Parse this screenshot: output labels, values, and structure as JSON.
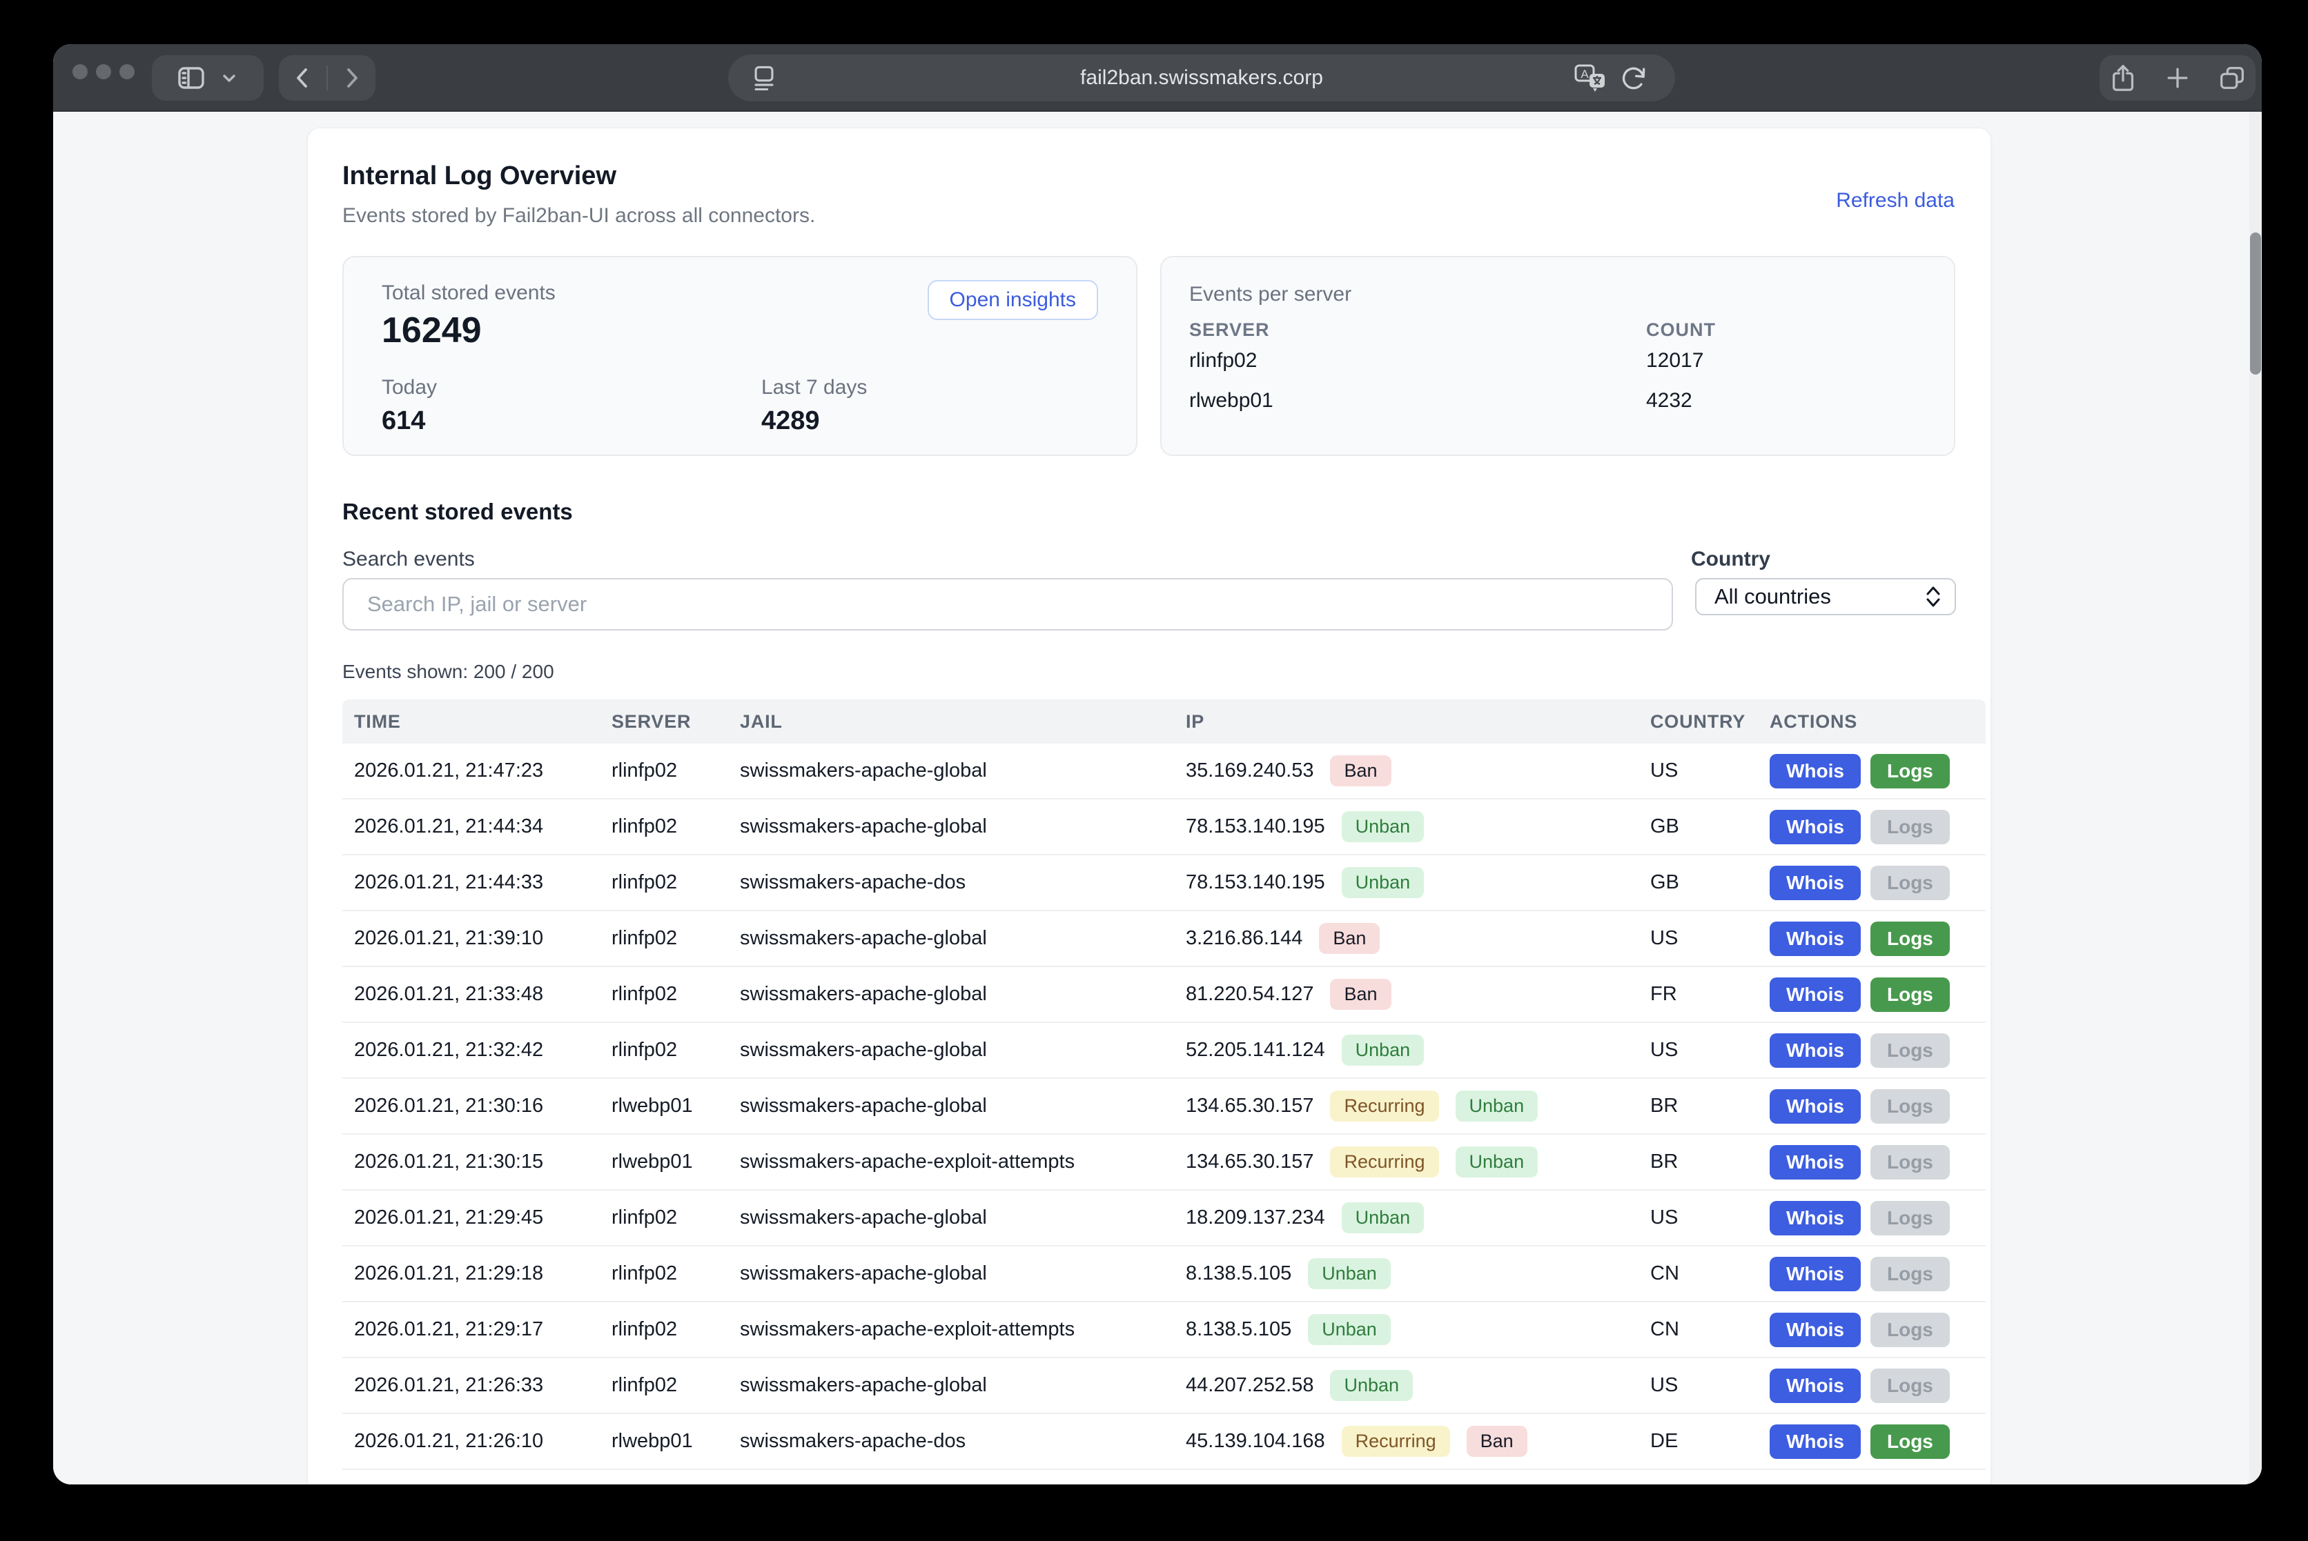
{
  "browser": {
    "url": "fail2ban.swissmakers.corp",
    "icons": {
      "reload": "↻",
      "new_tab": "+"
    }
  },
  "page": {
    "title": "Internal Log Overview",
    "subtitle": "Events stored by Fail2ban-UI across all connectors.",
    "refresh_label": "Refresh data"
  },
  "stats": {
    "total_label": "Total stored events",
    "total_value": "16249",
    "insights_label": "Open insights",
    "today_label": "Today",
    "today_value": "614",
    "last7_label": "Last 7 days",
    "last7_value": "4289"
  },
  "per_server": {
    "title": "Events per server",
    "columns": [
      "SERVER",
      "COUNT"
    ],
    "rows": [
      {
        "server": "rlinfp02",
        "count": "12017"
      },
      {
        "server": "rlwebp01",
        "count": "4232"
      }
    ]
  },
  "events": {
    "heading": "Recent stored events",
    "search_label": "Search events",
    "search_placeholder": "Search IP, jail or server",
    "country_label": "Country",
    "country_value": "All countries",
    "shown_label": "Events shown: 200 / 200",
    "columns": [
      "TIME",
      "SERVER",
      "JAIL",
      "IP",
      "COUNTRY",
      "ACTIONS"
    ],
    "actions": {
      "whois": "Whois",
      "logs": "Logs"
    },
    "rows": [
      {
        "time": "2026.01.21, 21:47:23",
        "server": "rlinfp02",
        "jail": "swissmakers-apache-global",
        "ip": "35.169.240.53",
        "badges": [
          {
            "type": "ban",
            "label": "Ban"
          }
        ],
        "country": "US",
        "logs_active": true
      },
      {
        "time": "2026.01.21, 21:44:34",
        "server": "rlinfp02",
        "jail": "swissmakers-apache-global",
        "ip": "78.153.140.195",
        "badges": [
          {
            "type": "unban",
            "label": "Unban"
          }
        ],
        "country": "GB",
        "logs_active": false
      },
      {
        "time": "2026.01.21, 21:44:33",
        "server": "rlinfp02",
        "jail": "swissmakers-apache-dos",
        "ip": "78.153.140.195",
        "badges": [
          {
            "type": "unban",
            "label": "Unban"
          }
        ],
        "country": "GB",
        "logs_active": false
      },
      {
        "time": "2026.01.21, 21:39:10",
        "server": "rlinfp02",
        "jail": "swissmakers-apache-global",
        "ip": "3.216.86.144",
        "badges": [
          {
            "type": "ban",
            "label": "Ban"
          }
        ],
        "country": "US",
        "logs_active": true
      },
      {
        "time": "2026.01.21, 21:33:48",
        "server": "rlinfp02",
        "jail": "swissmakers-apache-global",
        "ip": "81.220.54.127",
        "badges": [
          {
            "type": "ban",
            "label": "Ban"
          }
        ],
        "country": "FR",
        "logs_active": true
      },
      {
        "time": "2026.01.21, 21:32:42",
        "server": "rlinfp02",
        "jail": "swissmakers-apache-global",
        "ip": "52.205.141.124",
        "badges": [
          {
            "type": "unban",
            "label": "Unban"
          }
        ],
        "country": "US",
        "logs_active": false
      },
      {
        "time": "2026.01.21, 21:30:16",
        "server": "rlwebp01",
        "jail": "swissmakers-apache-global",
        "ip": "134.65.30.157",
        "badges": [
          {
            "type": "recurring",
            "label": "Recurring"
          },
          {
            "type": "unban",
            "label": "Unban"
          }
        ],
        "country": "BR",
        "logs_active": false
      },
      {
        "time": "2026.01.21, 21:30:15",
        "server": "rlwebp01",
        "jail": "swissmakers-apache-exploit-attempts",
        "ip": "134.65.30.157",
        "badges": [
          {
            "type": "recurring",
            "label": "Recurring"
          },
          {
            "type": "unban",
            "label": "Unban"
          }
        ],
        "country": "BR",
        "logs_active": false
      },
      {
        "time": "2026.01.21, 21:29:45",
        "server": "rlinfp02",
        "jail": "swissmakers-apache-global",
        "ip": "18.209.137.234",
        "badges": [
          {
            "type": "unban",
            "label": "Unban"
          }
        ],
        "country": "US",
        "logs_active": false
      },
      {
        "time": "2026.01.21, 21:29:18",
        "server": "rlinfp02",
        "jail": "swissmakers-apache-global",
        "ip": "8.138.5.105",
        "badges": [
          {
            "type": "unban",
            "label": "Unban"
          }
        ],
        "country": "CN",
        "logs_active": false
      },
      {
        "time": "2026.01.21, 21:29:17",
        "server": "rlinfp02",
        "jail": "swissmakers-apache-exploit-attempts",
        "ip": "8.138.5.105",
        "badges": [
          {
            "type": "unban",
            "label": "Unban"
          }
        ],
        "country": "CN",
        "logs_active": false
      },
      {
        "time": "2026.01.21, 21:26:33",
        "server": "rlinfp02",
        "jail": "swissmakers-apache-global",
        "ip": "44.207.252.58",
        "badges": [
          {
            "type": "unban",
            "label": "Unban"
          }
        ],
        "country": "US",
        "logs_active": false
      },
      {
        "time": "2026.01.21, 21:26:10",
        "server": "rlwebp01",
        "jail": "swissmakers-apache-dos",
        "ip": "45.139.104.168",
        "badges": [
          {
            "type": "recurring",
            "label": "Recurring"
          },
          {
            "type": "ban",
            "label": "Ban"
          }
        ],
        "country": "DE",
        "logs_active": true
      }
    ]
  },
  "colors": {
    "accent_blue": "#3b5cdd",
    "button_blue": "#3d5ee0",
    "button_green": "#479a4d",
    "badge_ban_bg": "#f8dddd",
    "badge_unban_bg": "#daf3e0",
    "badge_recurring_bg": "#f9f3cb",
    "toolbar_bg": "#3a3d42"
  }
}
